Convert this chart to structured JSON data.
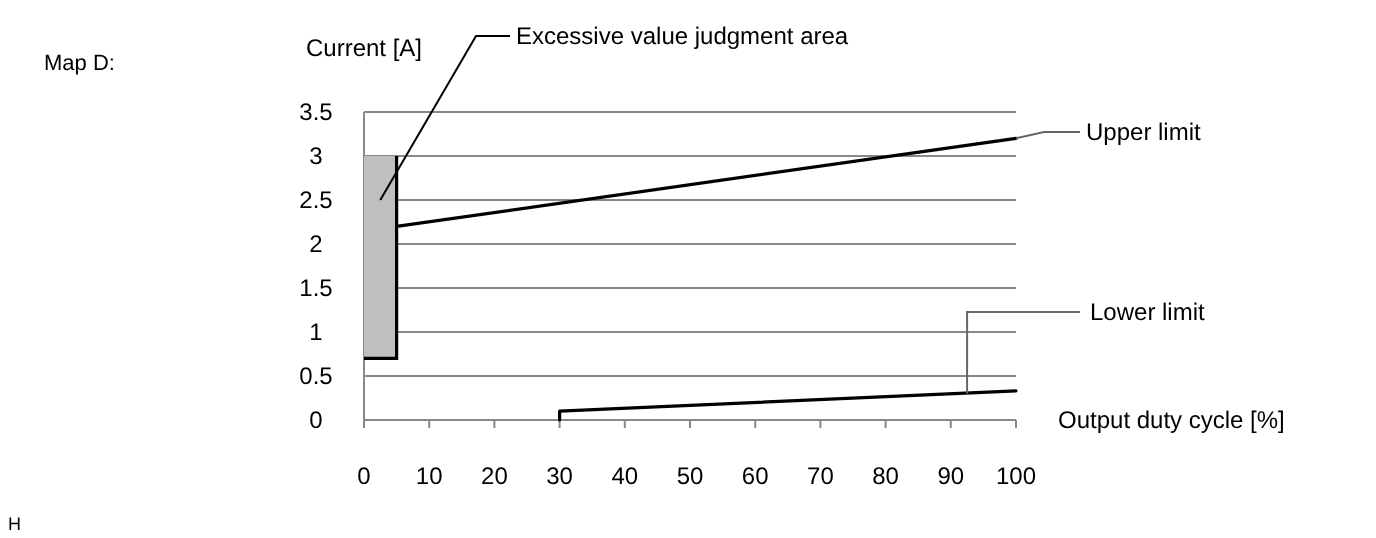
{
  "chart_data": {
    "type": "line",
    "title": "Map D:",
    "xlabel": "Output duty cycle [%]",
    "ylabel": "Current [A]",
    "xlim": [
      0,
      100
    ],
    "xticks": [
      0,
      10,
      20,
      30,
      40,
      50,
      60,
      70,
      80,
      90,
      100
    ],
    "ylim": [
      0,
      3.5
    ],
    "yticks": [
      0,
      0.5,
      1,
      1.5,
      2,
      2.5,
      3,
      3.5
    ],
    "grid": "y",
    "series": [
      {
        "type": "bar",
        "color": "#bfbfbf",
        "x": [
          2.5
        ],
        "values": [
          2.3
        ],
        "base": [
          0.7
        ]
      },
      {
        "color": "#000000",
        "x": [
          5,
          100
        ],
        "values": [
          2.2,
          3.2
        ]
      },
      {
        "color": "#000000",
        "x": [
          30,
          30,
          100
        ],
        "values": [
          0,
          0.1,
          0.33
        ]
      }
    ],
    "annotations": [
      "Excessive value judgment area",
      {
        "text": "Upper limit",
        "x": 100,
        "y": 3.2
      },
      {
        "text": "Lower limit",
        "x": 92.5,
        "y": 0.3
      },
      "H"
    ]
  }
}
